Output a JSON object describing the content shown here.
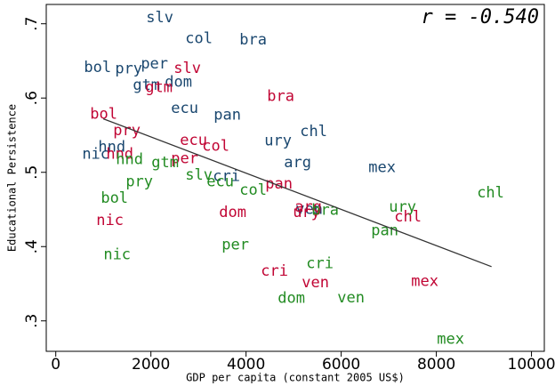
{
  "chart_data": {
    "type": "scatter",
    "x_label": "GDP per capita (constant 2005 US$)",
    "y_label": "Educational Persistence",
    "annotation": "r = -0.540",
    "xlim": [
      -200,
      10270
    ],
    "ylim": [
      0.259,
      0.726
    ],
    "xticks": [
      0,
      2000,
      4000,
      6000,
      8000,
      10000
    ],
    "yticks": [
      {
        "value": 0.3,
        "label": ".3"
      },
      {
        "value": 0.4,
        "label": ".4"
      },
      {
        "value": 0.5,
        "label": ".5"
      },
      {
        "value": 0.6,
        "label": ".6"
      },
      {
        "value": 0.7,
        "label": ".7"
      }
    ],
    "fit": {
      "color": "#333333",
      "x": [
        1000,
        9160
      ],
      "values": [
        0.572,
        0.373
      ]
    },
    "series": [
      {
        "color": "#1a476f",
        "labels": [
          "slv",
          "col",
          "bra",
          "bol",
          "pry",
          "per",
          "gtm",
          "dom",
          "ecu",
          "pan",
          "chl",
          "ury",
          "arg",
          "mex",
          "hnd",
          "nic",
          "cri",
          "ven"
        ],
        "x": [
          2187,
          3009,
          4150,
          879,
          1533,
          2075,
          1907,
          2579,
          2710,
          3607,
          5421,
          4673,
          5084,
          6860,
          1178,
          841,
          3589,
          5327
        ],
        "values": [
          0.708,
          0.68,
          0.678,
          0.641,
          0.639,
          0.646,
          0.617,
          0.621,
          0.586,
          0.577,
          0.555,
          0.542,
          0.513,
          0.506,
          0.534,
          0.524,
          0.494,
          0.45
        ]
      },
      {
        "color": "#c10534",
        "labels": [
          "slv",
          "gtm",
          "bra",
          "bol",
          "pry",
          "ecu",
          "col",
          "hnd",
          "per",
          "pan",
          "arg",
          "ury",
          "dom",
          "chl",
          "nic",
          "cri",
          "ven",
          "mex"
        ],
        "x": [
          2766,
          2168,
          4729,
          1009,
          1495,
          2897,
          3364,
          1346,
          2710,
          4692,
          5308,
          5271,
          3720,
          7402,
          1140,
          4598,
          5458,
          7757
        ],
        "values": [
          0.64,
          0.614,
          0.602,
          0.578,
          0.556,
          0.543,
          0.535,
          0.524,
          0.518,
          0.484,
          0.453,
          0.446,
          0.446,
          0.44,
          0.435,
          0.367,
          0.351,
          0.353
        ]
      },
      {
        "color": "#228b22",
        "labels": [
          "hnd",
          "gtm",
          "slv",
          "ecu",
          "col",
          "pry",
          "bol",
          "ury",
          "bra",
          "chl",
          "pan",
          "nic",
          "per",
          "cri",
          "dom",
          "ven",
          "mex"
        ],
        "x": [
          1551,
          2299,
          3009,
          3458,
          4150,
          1757,
          1234,
          7290,
          5664,
          9140,
          6916,
          1290,
          3776,
          5551,
          4953,
          6206,
          8299
        ],
        "values": [
          0.517,
          0.513,
          0.496,
          0.487,
          0.476,
          0.487,
          0.465,
          0.453,
          0.449,
          0.472,
          0.421,
          0.389,
          0.402,
          0.377,
          0.33,
          0.331,
          0.275
        ]
      }
    ]
  }
}
